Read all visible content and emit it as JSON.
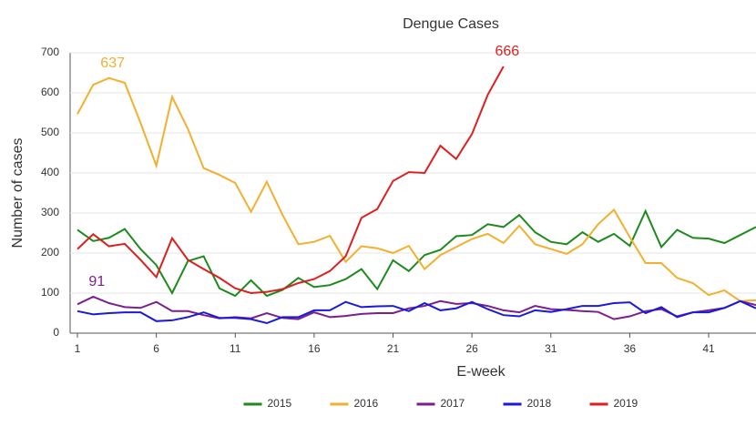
{
  "chart_data": {
    "type": "line",
    "title": "Dengue Cases",
    "x_label": "E-week",
    "y_label": "Number of cases",
    "x": [
      1,
      2,
      3,
      4,
      5,
      6,
      7,
      8,
      9,
      10,
      11,
      12,
      13,
      14,
      15,
      16,
      17,
      18,
      19,
      20,
      21,
      22,
      23,
      24,
      25,
      26,
      27,
      28,
      29,
      30,
      31,
      32,
      33,
      34,
      35,
      36,
      37,
      38,
      39,
      40,
      41,
      42,
      43,
      44
    ],
    "xlim": [
      1,
      44
    ],
    "xticks": [
      1,
      6,
      11,
      16,
      21,
      26,
      31,
      36,
      41
    ],
    "ylim": [
      0,
      700
    ],
    "yticks": [
      0,
      100,
      200,
      300,
      400,
      500,
      600,
      700
    ],
    "grid": true,
    "legend": "bottom",
    "series": [
      {
        "name": "2015",
        "color": "#1e8a1e",
        "label_max": false,
        "values": [
          258,
          230,
          238,
          260,
          210,
          170,
          100,
          180,
          192,
          112,
          93,
          132,
          93,
          108,
          138,
          115,
          120,
          135,
          160,
          110,
          182,
          155,
          195,
          208,
          242,
          245,
          272,
          265,
          295,
          252,
          228,
          222,
          252,
          228,
          248,
          218,
          305,
          215,
          258,
          238,
          236,
          225,
          245,
          265
        ]
      },
      {
        "name": "2016",
        "color": "#f2b02e",
        "label_max": true,
        "values": [
          547,
          620,
          637,
          625,
          525,
          418,
          590,
          510,
          412,
          395,
          375,
          303,
          378,
          295,
          222,
          228,
          243,
          178,
          217,
          212,
          200,
          218,
          160,
          195,
          215,
          235,
          248,
          225,
          268,
          222,
          210,
          198,
          222,
          272,
          308,
          240,
          175,
          175,
          138,
          125,
          95,
          107,
          80,
          82
        ]
      },
      {
        "name": "2017",
        "color": "#7b1f8c",
        "label_max": true,
        "values": [
          72,
          91,
          75,
          65,
          63,
          78,
          55,
          55,
          45,
          37,
          40,
          37,
          50,
          38,
          35,
          52,
          40,
          43,
          48,
          50,
          50,
          62,
          68,
          80,
          73,
          75,
          68,
          57,
          52,
          68,
          60,
          58,
          55,
          53,
          35,
          42,
          55,
          60,
          42,
          52,
          57,
          63,
          80,
          70
        ]
      },
      {
        "name": "2018",
        "color": "#1a1adb",
        "label_max": false,
        "values": [
          55,
          47,
          50,
          52,
          52,
          30,
          32,
          40,
          52,
          38,
          38,
          35,
          25,
          40,
          40,
          57,
          57,
          78,
          65,
          67,
          68,
          55,
          75,
          57,
          62,
          78,
          60,
          45,
          42,
          57,
          53,
          60,
          68,
          68,
          75,
          77,
          50,
          65,
          40,
          52,
          52,
          63,
          80,
          62
        ]
      },
      {
        "name": "2019",
        "color": "#dd1f1f",
        "label_max": true,
        "values": [
          210,
          247,
          217,
          223,
          183,
          140,
          237,
          183,
          160,
          138,
          112,
          100,
          103,
          110,
          125,
          135,
          155,
          192,
          288,
          310,
          380,
          402,
          400,
          468,
          435,
          497,
          595,
          666,
          null,
          null,
          null,
          null,
          null,
          null,
          null,
          null,
          null,
          null,
          null,
          null,
          null,
          null,
          null,
          null
        ]
      }
    ]
  }
}
